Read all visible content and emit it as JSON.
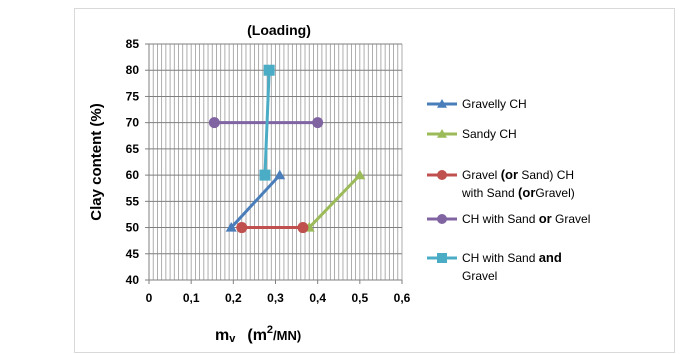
{
  "chart_data": {
    "type": "scatter",
    "title": "(Loading)",
    "xlabel_main": "m",
    "xlabel_sub": "v",
    "xlabel_units_open": "(m",
    "xlabel_units_sup": "2",
    "xlabel_units_close": "/MN)",
    "ylabel": "Clay content (%)",
    "xlim": [
      0,
      0.6
    ],
    "ylim": [
      40,
      85
    ],
    "xticks": [
      0,
      0.1,
      0.2,
      0.3,
      0.4,
      0.5,
      0.6
    ],
    "xtick_labels": [
      "0",
      "0,1",
      "0,2",
      "0,3",
      "0,4",
      "0,5",
      "0,6"
    ],
    "yticks": [
      40,
      45,
      50,
      55,
      60,
      65,
      70,
      75,
      80,
      85
    ],
    "ytick_labels": [
      "40",
      "45",
      "50",
      "55",
      "60",
      "65",
      "70",
      "75",
      "80",
      "85"
    ],
    "grid": "vertical-minor-and-horizontal",
    "legend_position": "right",
    "series": [
      {
        "name": "Gravelly CH",
        "color": "#4a7ebb",
        "marker": "triangle",
        "points": [
          {
            "x": 0.195,
            "y": 50
          },
          {
            "x": 0.31,
            "y": 60
          }
        ]
      },
      {
        "name": "Sandy CH",
        "color": "#9bbb59",
        "marker": "triangle",
        "points": [
          {
            "x": 0.38,
            "y": 50
          },
          {
            "x": 0.5,
            "y": 60
          }
        ]
      },
      {
        "name_parts": [
          {
            "text": "Gravel ",
            "bold": false
          },
          {
            "text": "(or",
            "bold": true
          },
          {
            "text": " Sand) CH",
            "bold": false
          }
        ],
        "name_line2_parts": [
          {
            "text": "with Sand ",
            "bold": false
          },
          {
            "text": "(or",
            "bold": true
          },
          {
            "text": "Gravel)",
            "bold": false
          }
        ],
        "color": "#c0504d",
        "marker": "circle",
        "points": [
          {
            "x": 0.22,
            "y": 50
          },
          {
            "x": 0.365,
            "y": 50
          }
        ]
      },
      {
        "name_parts": [
          {
            "text": "CH with  Sand ",
            "bold": false
          },
          {
            "text": "or",
            "bold": true
          },
          {
            "text": " Gravel",
            "bold": false
          }
        ],
        "color": "#8064a2",
        "marker": "circle",
        "points": [
          {
            "x": 0.155,
            "y": 70
          },
          {
            "x": 0.4,
            "y": 70
          }
        ]
      },
      {
        "name_parts": [
          {
            "text": "CH with  Sand ",
            "bold": false
          },
          {
            "text": "and",
            "bold": true
          }
        ],
        "name_line2_parts": [
          {
            "text": "Gravel",
            "bold": false
          }
        ],
        "color": "#4bacc6",
        "marker": "square",
        "points": [
          {
            "x": 0.275,
            "y": 60
          },
          {
            "x": 0.285,
            "y": 80
          }
        ]
      }
    ]
  }
}
